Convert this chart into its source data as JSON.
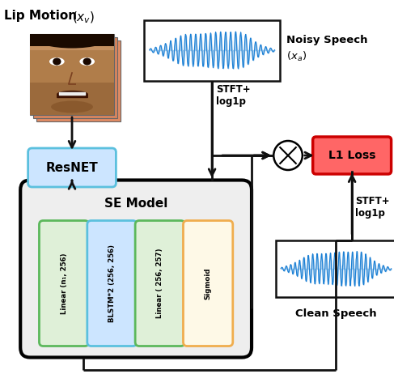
{
  "lip_motion_label": "Lip Motion ",
  "noisy_speech_label": "Noisy Speech ",
  "clean_speech_label": "Clean Speech",
  "se_model_label": "SE Model",
  "resnet_label": "ResNET",
  "l1_loss_label": "L1 Loss",
  "stft_label1": "STFT+\nlog1p",
  "stft_label2": "STFT+\nlog1p",
  "blocks": [
    {
      "label": "Linear (n₁, 256)",
      "facecolor": "#dff0d8",
      "edgecolor": "#5cb85c",
      "lw": 2.0
    },
    {
      "label": "BLSTM*2 (256, 256)",
      "facecolor": "#cce5ff",
      "edgecolor": "#5bc0de",
      "lw": 2.0
    },
    {
      "label": "Linear ( 256, 257)",
      "facecolor": "#dff0d8",
      "edgecolor": "#5cb85c",
      "lw": 2.0
    },
    {
      "label": "Sigmoid",
      "facecolor": "#fef9e7",
      "edgecolor": "#f0ad4e",
      "lw": 2.0
    }
  ],
  "bg_color": "#ffffff",
  "se_model_bg": "#eeeeee",
  "resnet_facecolor": "#cce5ff",
  "resnet_edgecolor": "#5bc0de",
  "l1_facecolor": "#ff6666",
  "l1_edgecolor": "#cc0000",
  "l1_text_color": "#000000",
  "noisy_box_edgecolor": "#111111",
  "clean_box_edgecolor": "#111111",
  "waveform_color": "#1a7fd4",
  "arrow_color": "#111111",
  "arrow_lw": 2.0
}
